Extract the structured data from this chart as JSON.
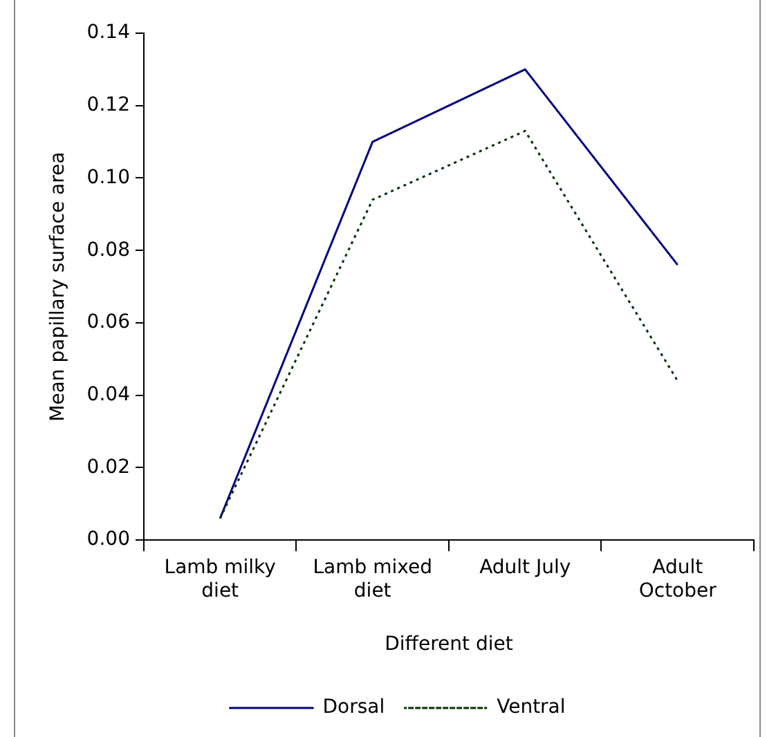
{
  "chart_data": {
    "type": "line",
    "xlabel": "Different diet",
    "ylabel": "Mean papillary surface area",
    "categories": [
      "Lamb milky diet",
      "Lamb mixed diet",
      "Adult July",
      "Adult October"
    ],
    "series": [
      {
        "name": "Dorsal",
        "color": "#000080",
        "values": [
          0.006,
          0.11,
          0.13,
          0.076
        ],
        "line_style": "solid"
      },
      {
        "name": "Ventral",
        "color": "#003300",
        "values": [
          0.006,
          0.094,
          0.113,
          0.044
        ],
        "line_style": "dotted"
      }
    ],
    "ylim": [
      0,
      0.14
    ],
    "yticks": [
      {
        "value": 0,
        "label": "0.00"
      },
      {
        "value": 0.02,
        "label": "0.02"
      },
      {
        "value": 0.04,
        "label": "0.04"
      },
      {
        "value": 0.06,
        "label": "0.06"
      },
      {
        "value": 0.08,
        "label": "0.08"
      },
      {
        "value": 0.1,
        "label": "0.10"
      },
      {
        "value": 0.12,
        "label": "0.12"
      },
      {
        "value": 0.14,
        "label": "0.14"
      }
    ],
    "grid": false,
    "legend": "bottom",
    "marker": "none"
  }
}
